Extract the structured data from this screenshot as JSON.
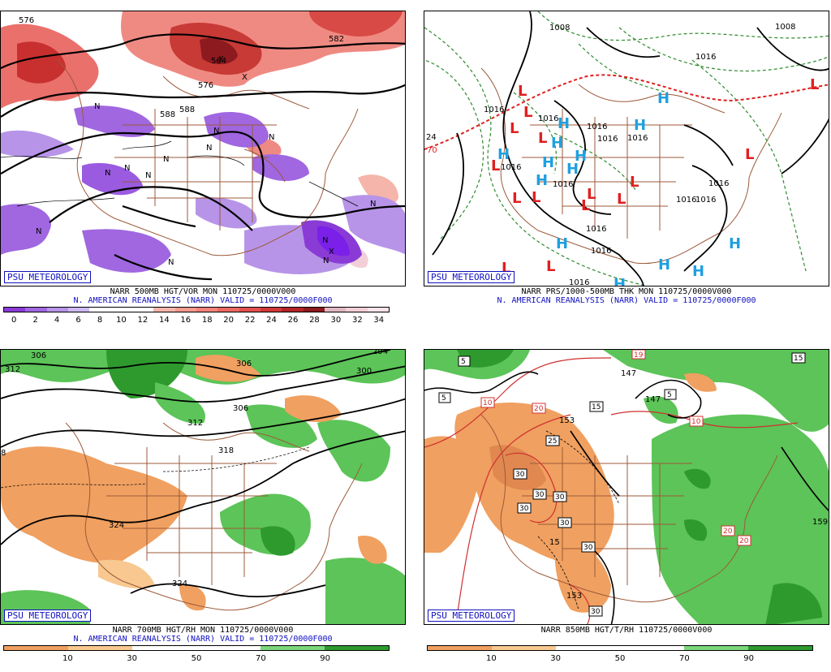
{
  "panels": [
    {
      "id": "vorticity",
      "brand": "PSU METEOROLOGY",
      "title_line1": "NARR 500MB HGT/VOR MON 110725/0000V000",
      "title_line2": "N. AMERICAN REANALYSIS (NARR) VALID = 110725/0000F000",
      "colorbar": {
        "labels": [
          "0",
          "2",
          "4",
          "6",
          "8",
          "10",
          "12",
          "14",
          "16",
          "18",
          "20",
          "22",
          "24",
          "26",
          "28",
          "30",
          "32",
          "34"
        ],
        "colors": [
          "#8a3bd6",
          "#a067e0",
          "#b794e8",
          "#cdb9ef",
          "#ffffff",
          "#ffffff",
          "#ffffff",
          "#f5b5ab",
          "#f39a8f",
          "#f0837a",
          "#ea6a63",
          "#e0514d",
          "#d0393a",
          "#b2262a",
          "#8d1a1f",
          "#e0b8c3",
          "#f2cfd8",
          "#fbe3ea"
        ]
      },
      "contour_labels": [
        "576",
        "582",
        "576",
        "588",
        "588",
        "564"
      ],
      "symbols": [
        "N",
        "N",
        "N",
        "N",
        "N",
        "N",
        "N",
        "N",
        "N",
        "N",
        "N",
        "N",
        "N",
        "X",
        "X",
        "X"
      ]
    },
    {
      "id": "pressure",
      "brand": "PSU METEOROLOGY",
      "title_line1": "NARR PRS/1000-500MB THK MON 110725/0000V000",
      "title_line2": "N. AMERICAN REANALYSIS (NARR) VALID = 110725/0000F000",
      "contour_labels": [
        "1008",
        "1008",
        "1016",
        "1016",
        "1016",
        "1016",
        "1016",
        "1016",
        "1016",
        "1016",
        "1016",
        "1016",
        "1016",
        "1016",
        "1016",
        "1016",
        "24",
        "70"
      ],
      "highs": [
        "H",
        "H",
        "H",
        "H",
        "H",
        "H",
        "H",
        "H",
        "H",
        "H",
        "H",
        "H",
        "H",
        "H"
      ],
      "lows": [
        "L",
        "L",
        "L",
        "L",
        "L",
        "L",
        "L",
        "L",
        "L",
        "L",
        "L",
        "L",
        "L",
        "L",
        "L"
      ]
    },
    {
      "id": "rh700",
      "brand": "PSU METEOROLOGY",
      "title_line1": "NARR 700MB HGT/RH MON 110725/0000V000",
      "title_line2": "N. AMERICAN REANALYSIS (NARR) VALID = 110725/0000F000",
      "colorbar": {
        "labels": [
          "10",
          "30",
          "50",
          "70",
          "90"
        ],
        "colors": [
          "#f0a060",
          "#f8c890",
          "#ffffff",
          "#ffffff",
          "#7cd67a",
          "#2e9a2e"
        ]
      },
      "contour_labels": [
        "306",
        "312",
        "306",
        "300",
        "294",
        "306",
        "312",
        "318",
        "324",
        "324",
        "8"
      ]
    },
    {
      "id": "rh850",
      "brand": "PSU METEOROLOGY",
      "title_line1": "NARR 850MB HGT/T/RH 110725/0000V000",
      "colorbar": {
        "labels": [
          "10",
          "30",
          "50",
          "70",
          "90"
        ],
        "colors": [
          "#f0a060",
          "#f8c890",
          "#ffffff",
          "#ffffff",
          "#7cd67a",
          "#2e9a2e"
        ]
      },
      "contour_labels": [
        "147",
        "147",
        "153",
        "153",
        "159",
        "15"
      ],
      "boxed_labels": [
        "5",
        "5",
        "5",
        "15",
        "15",
        "25",
        "10",
        "10",
        "19",
        "20",
        "20",
        "20",
        "30",
        "30",
        "30",
        "30",
        "30",
        "30",
        "30"
      ]
    }
  ]
}
